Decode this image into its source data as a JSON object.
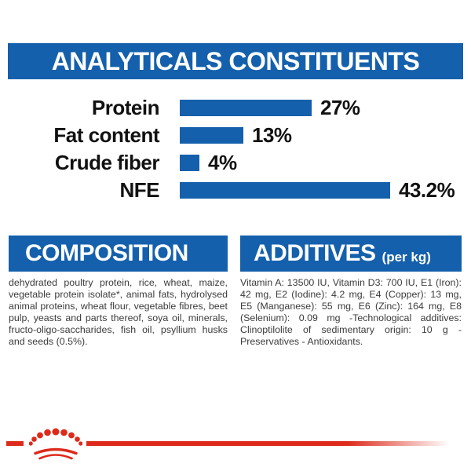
{
  "colors": {
    "brand_blue": "#1560ac",
    "brand_red": "#dd2a1b",
    "label_text": "#111111",
    "body_text": "#3b3b3b"
  },
  "analyticals": {
    "title": "ANALYTICALS CONSTITUENTS"
  },
  "chart_data": {
    "type": "bar",
    "orientation": "horizontal",
    "categories": [
      "Protein",
      "Fat content",
      "Crude fiber",
      "NFE"
    ],
    "values": [
      27,
      13,
      4,
      43.2
    ],
    "value_labels": [
      "27%",
      "13%",
      "4%",
      "43.2%"
    ],
    "title": "ANALYTICALS CONSTITUENTS",
    "xlabel": "",
    "ylabel": "",
    "xlim": [
      0,
      45
    ],
    "bar_color": "#1560ac",
    "grid": false,
    "legend": false
  },
  "composition": {
    "title": "COMPOSITION",
    "body": "dehydrated poultry protein, rice, wheat, maize, vegetable protein isolate*, animal fats, hydrolysed animal proteins, wheat flour, vegetable fibres, beet pulp, yeasts and parts thereof, soya oil, minerals, fructo-oligo-saccharides, fish oil, psyllium husks and seeds (0.5%)."
  },
  "additives": {
    "title": "ADDITIVES",
    "unit": "(per kg)",
    "body": "Vitamin A: 13500 IU, Vitamin D3: 700 IU, E1 (Iron): 42 mg, E2 (Iodine): 4.2 mg, E4 (Copper): 13 mg, E5 (Manganese): 55 mg, E6 (Zinc): 164 mg, E8 (Selenium): 0.09 mg -Technological additives: Clinoptilolite of sedimentary origin: 10 g - Preservatives - Antioxidants."
  },
  "footer": {
    "logo": "royal-canin-crown"
  }
}
